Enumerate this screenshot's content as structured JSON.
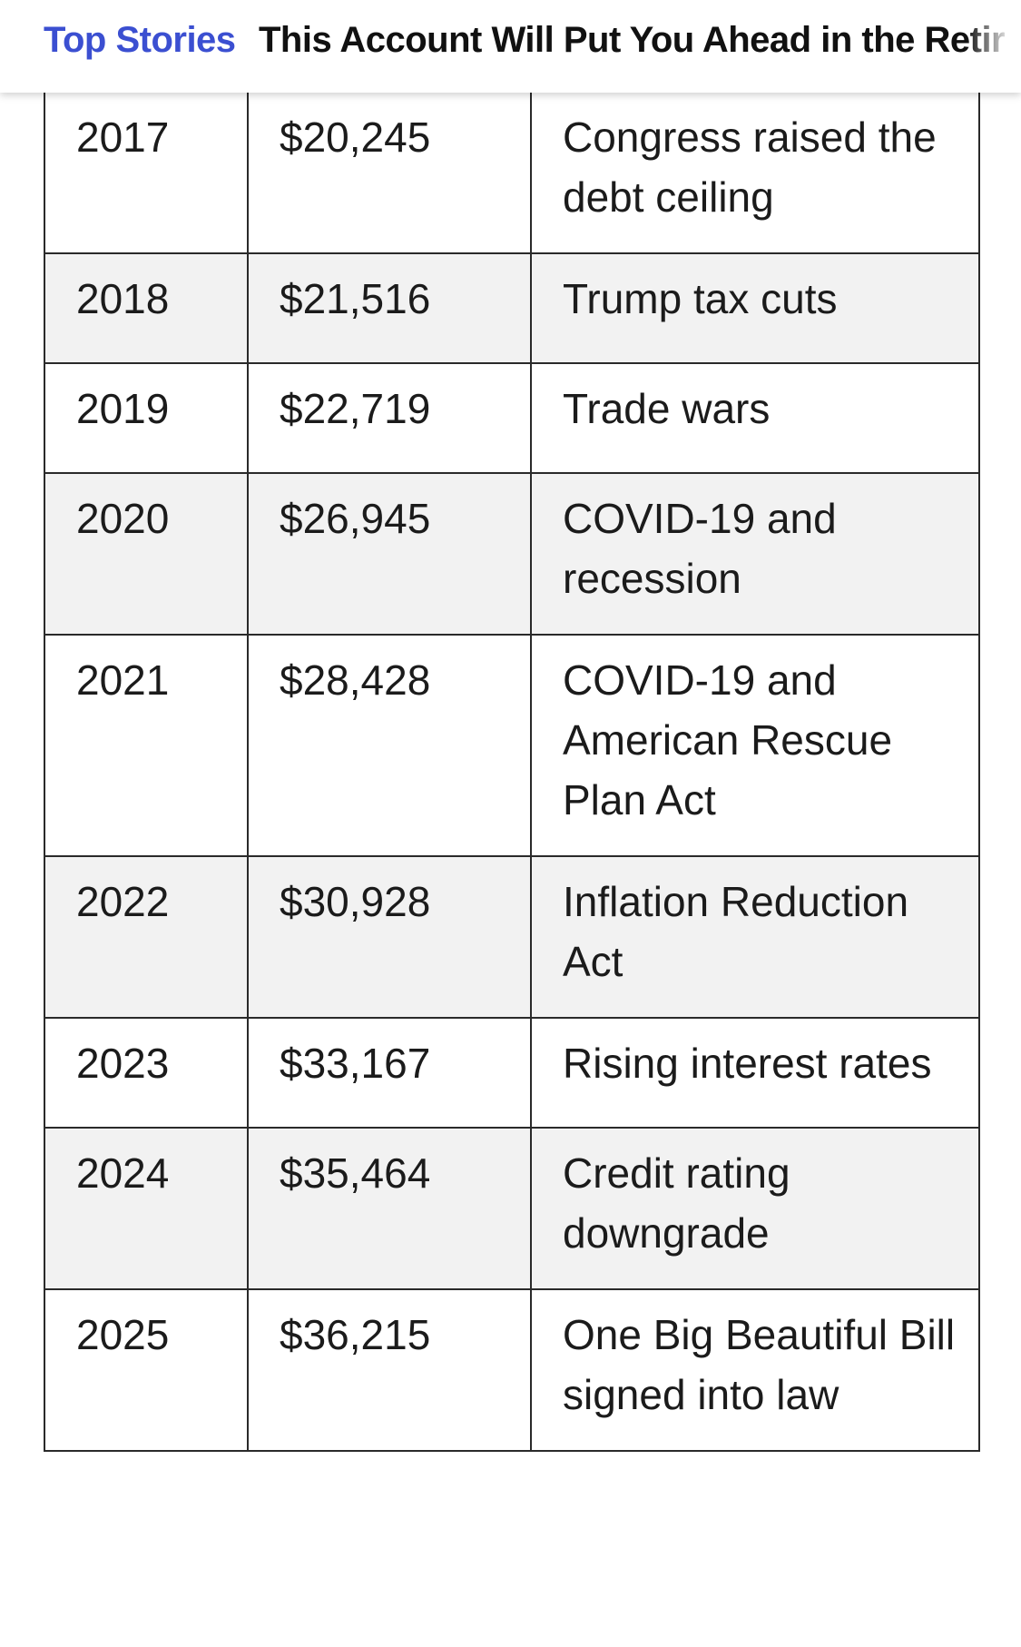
{
  "header": {
    "section_label": "Top Stories",
    "headline": "This Account Will Put You Ahead in the Retir",
    "section_color": "#3b4fd1"
  },
  "table": {
    "rows": [
      {
        "year": "2017",
        "debt": "$20,245",
        "event": "Congress raised the debt ceiling"
      },
      {
        "year": "2018",
        "debt": "$21,516",
        "event": "Trump tax cuts"
      },
      {
        "year": "2019",
        "debt": "$22,719",
        "event": "Trade wars"
      },
      {
        "year": "2020",
        "debt": "$26,945",
        "event": "COVID-19 and recession"
      },
      {
        "year": "2021",
        "debt": "$28,428",
        "event": "COVID-19 and American Rescue Plan Act"
      },
      {
        "year": "2022",
        "debt": "$30,928",
        "event": "Inflation Reduction Act"
      },
      {
        "year": "2023",
        "debt": "$33,167",
        "event": "Rising interest rates"
      },
      {
        "year": "2024",
        "debt": "$35,464",
        "event": "Credit rating downgrade"
      },
      {
        "year": "2025",
        "debt": "$36,215",
        "event": "One Big Beautiful Bill signed into law"
      }
    ]
  }
}
